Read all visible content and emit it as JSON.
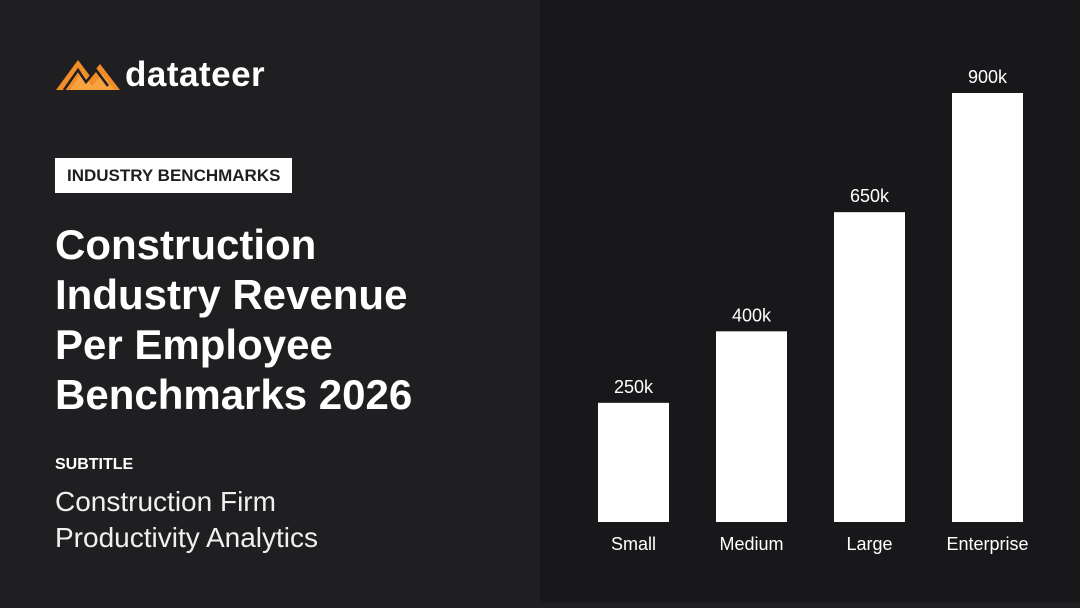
{
  "brand": {
    "name": "datateer"
  },
  "tag": "INDUSTRY BENCHMARKS",
  "title": "Construction Industry Revenue Per Employee Benchmarks 2026",
  "subtitle_label": "SUBTITLE",
  "subtitle": "Construction Firm Productivity Analytics",
  "chart_data": {
    "type": "bar",
    "categories": [
      "Small",
      "Medium",
      "Large",
      "Enterprise"
    ],
    "values": [
      250000,
      400000,
      650000,
      900000
    ],
    "value_labels": [
      "250k",
      "400k",
      "650k",
      "900k"
    ],
    "color": "#ffffff"
  }
}
